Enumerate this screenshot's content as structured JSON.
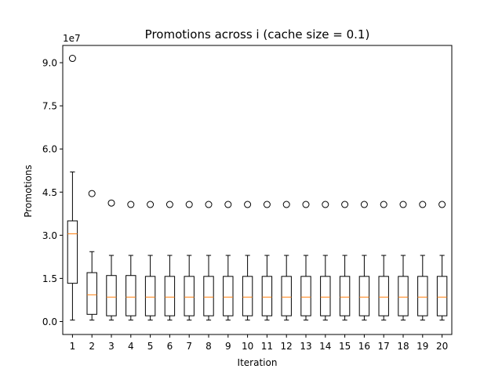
{
  "chart_data": {
    "type": "box",
    "title": "Promotions across i (cache size = 0.1)",
    "xlabel": "Iteration",
    "ylabel": "Promotions",
    "offset_label": "1e7",
    "ylim": [
      -0.45,
      9.6
    ],
    "yticks": [
      0.0,
      1.5,
      3.0,
      4.5,
      6.0,
      7.5,
      9.0
    ],
    "ytick_labels": [
      "0.0",
      "1.5",
      "3.0",
      "4.5",
      "6.0",
      "7.5",
      "9.0"
    ],
    "y_multiplier": 10000000,
    "categories": [
      "1",
      "2",
      "3",
      "4",
      "5",
      "6",
      "7",
      "8",
      "9",
      "10",
      "11",
      "12",
      "13",
      "14",
      "15",
      "16",
      "17",
      "18",
      "19",
      "20"
    ],
    "boxes": [
      {
        "whislo": 0.05,
        "q1": 1.33,
        "med": 3.05,
        "q3": 3.5,
        "whishi": 5.2,
        "fliers": [
          9.15
        ]
      },
      {
        "whislo": 0.05,
        "q1": 0.25,
        "med": 0.93,
        "q3": 1.7,
        "whishi": 2.43,
        "fliers": [
          4.45
        ]
      },
      {
        "whislo": 0.05,
        "q1": 0.2,
        "med": 0.85,
        "q3": 1.6,
        "whishi": 2.3,
        "fliers": [
          4.12
        ]
      },
      {
        "whislo": 0.05,
        "q1": 0.2,
        "med": 0.85,
        "q3": 1.6,
        "whishi": 2.3,
        "fliers": [
          4.07
        ]
      },
      {
        "whislo": 0.05,
        "q1": 0.2,
        "med": 0.85,
        "q3": 1.57,
        "whishi": 2.3,
        "fliers": [
          4.07
        ]
      },
      {
        "whislo": 0.05,
        "q1": 0.2,
        "med": 0.85,
        "q3": 1.57,
        "whishi": 2.3,
        "fliers": [
          4.07
        ]
      },
      {
        "whislo": 0.05,
        "q1": 0.2,
        "med": 0.85,
        "q3": 1.57,
        "whishi": 2.3,
        "fliers": [
          4.07
        ]
      },
      {
        "whislo": 0.05,
        "q1": 0.2,
        "med": 0.85,
        "q3": 1.57,
        "whishi": 2.3,
        "fliers": [
          4.07
        ]
      },
      {
        "whislo": 0.05,
        "q1": 0.2,
        "med": 0.85,
        "q3": 1.57,
        "whishi": 2.3,
        "fliers": [
          4.07
        ]
      },
      {
        "whislo": 0.05,
        "q1": 0.2,
        "med": 0.85,
        "q3": 1.57,
        "whishi": 2.3,
        "fliers": [
          4.07
        ]
      },
      {
        "whislo": 0.05,
        "q1": 0.2,
        "med": 0.85,
        "q3": 1.57,
        "whishi": 2.3,
        "fliers": [
          4.07
        ]
      },
      {
        "whislo": 0.05,
        "q1": 0.2,
        "med": 0.85,
        "q3": 1.57,
        "whishi": 2.3,
        "fliers": [
          4.07
        ]
      },
      {
        "whislo": 0.05,
        "q1": 0.2,
        "med": 0.85,
        "q3": 1.57,
        "whishi": 2.3,
        "fliers": [
          4.07
        ]
      },
      {
        "whislo": 0.05,
        "q1": 0.2,
        "med": 0.85,
        "q3": 1.57,
        "whishi": 2.3,
        "fliers": [
          4.07
        ]
      },
      {
        "whislo": 0.05,
        "q1": 0.2,
        "med": 0.85,
        "q3": 1.57,
        "whishi": 2.3,
        "fliers": [
          4.07
        ]
      },
      {
        "whislo": 0.05,
        "q1": 0.2,
        "med": 0.85,
        "q3": 1.57,
        "whishi": 2.3,
        "fliers": [
          4.07
        ]
      },
      {
        "whislo": 0.05,
        "q1": 0.2,
        "med": 0.85,
        "q3": 1.57,
        "whishi": 2.3,
        "fliers": [
          4.07
        ]
      },
      {
        "whislo": 0.05,
        "q1": 0.2,
        "med": 0.85,
        "q3": 1.57,
        "whishi": 2.3,
        "fliers": [
          4.07
        ]
      },
      {
        "whislo": 0.05,
        "q1": 0.2,
        "med": 0.85,
        "q3": 1.57,
        "whishi": 2.3,
        "fliers": [
          4.07
        ]
      },
      {
        "whislo": 0.05,
        "q1": 0.2,
        "med": 0.85,
        "q3": 1.57,
        "whishi": 2.3,
        "fliers": [
          4.07
        ]
      }
    ],
    "grid": false,
    "legend": "none",
    "colors": {
      "box": "#000000",
      "median": "#ff7f0e",
      "flier": "#000000"
    }
  }
}
